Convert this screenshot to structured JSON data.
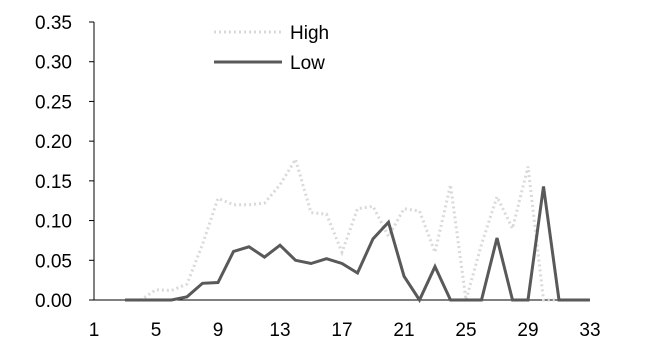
{
  "chart_data": {
    "type": "line",
    "title": "",
    "xlabel": "",
    "ylabel": "",
    "x": [
      1,
      2,
      3,
      4,
      5,
      6,
      7,
      8,
      9,
      10,
      11,
      12,
      13,
      14,
      15,
      16,
      17,
      18,
      19,
      20,
      21,
      22,
      23,
      24,
      25,
      26,
      27,
      28,
      29,
      30,
      31,
      32,
      33
    ],
    "xticks": [
      1,
      5,
      9,
      13,
      17,
      21,
      25,
      29,
      33
    ],
    "yticks": [
      "0.00",
      "0.05",
      "0.10",
      "0.15",
      "0.20",
      "0.25",
      "0.30",
      "0.35"
    ],
    "ylim": [
      0,
      0.35
    ],
    "xlim": [
      1,
      33
    ],
    "grid": false,
    "legend_position": "top-center",
    "series": [
      {
        "name": "High",
        "color": "#d9d9d9",
        "style": "dotted",
        "values": [
          null,
          null,
          0,
          0,
          0.013,
          0.012,
          0.02,
          0.07,
          0.128,
          0.12,
          0.12,
          0.122,
          0.145,
          0.177,
          0.11,
          0.108,
          0.06,
          0.115,
          0.118,
          0.08,
          0.115,
          0.112,
          0.06,
          0.145,
          0,
          0.07,
          0.13,
          0.09,
          0.168,
          0,
          0,
          0,
          0
        ]
      },
      {
        "name": "Low",
        "color": "#595959",
        "style": "solid",
        "values": [
          null,
          null,
          0,
          0,
          0,
          0,
          0.004,
          0.021,
          0.022,
          0.061,
          0.067,
          0.054,
          0.069,
          0.05,
          0.046,
          0.052,
          0.046,
          0.034,
          0.077,
          0.098,
          0.03,
          0,
          0.042,
          0,
          0,
          0,
          0.078,
          0,
          0,
          0.143,
          0,
          0,
          0
        ]
      }
    ]
  }
}
